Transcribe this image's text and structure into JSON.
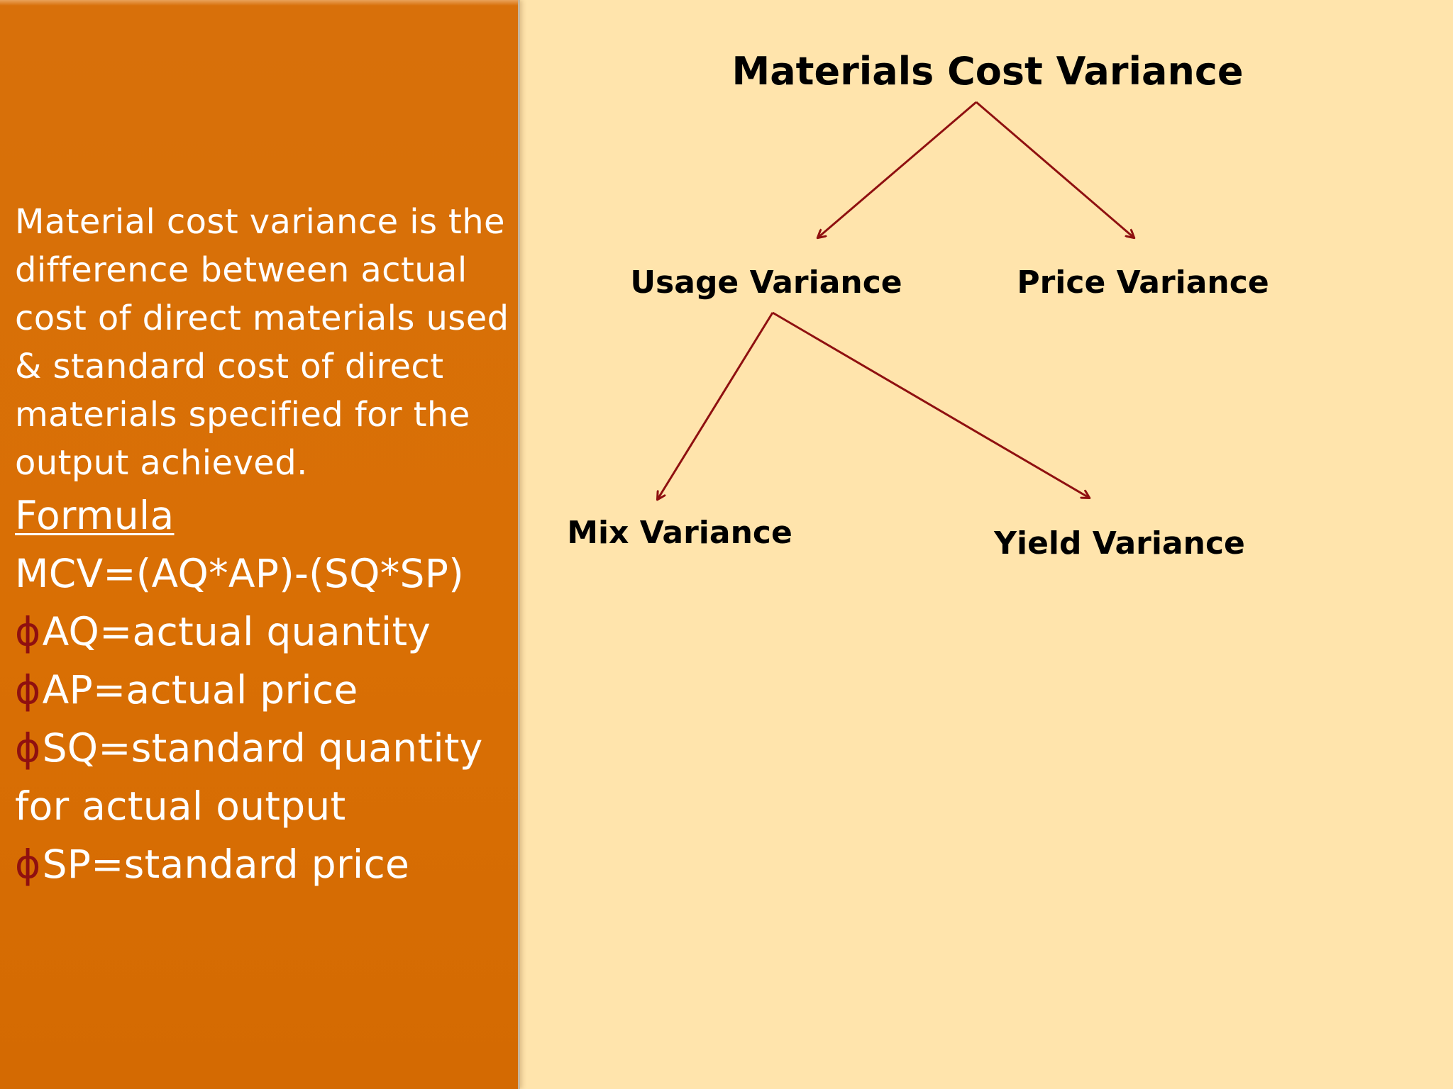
{
  "definition": "Material cost variance is the difference between actual cost of direct materials used & standard cost of direct materials specified for the output achieved.",
  "formula": {
    "heading": "Formula",
    "expression": "MCV=(AQ*AP)-(SQ*SP)",
    "bullet_symbol": "ϕ",
    "items": [
      {
        "text": "AQ=actual quantity"
      },
      {
        "text": "AP=actual price"
      },
      {
        "text": "SQ=standard quantity for actual output"
      },
      {
        "text": "SP=standard price"
      }
    ]
  },
  "diagram": {
    "root": "Materials Cost Variance",
    "children": {
      "usage": "Usage Variance",
      "price": "Price Variance"
    },
    "usage_children": {
      "mix": "Mix Variance",
      "yield": "Yield Variance"
    }
  },
  "colors": {
    "background": "#ffe4ac",
    "panel": "#d96f04",
    "arrow": "#8f1010",
    "bullet": "#8f1010"
  }
}
